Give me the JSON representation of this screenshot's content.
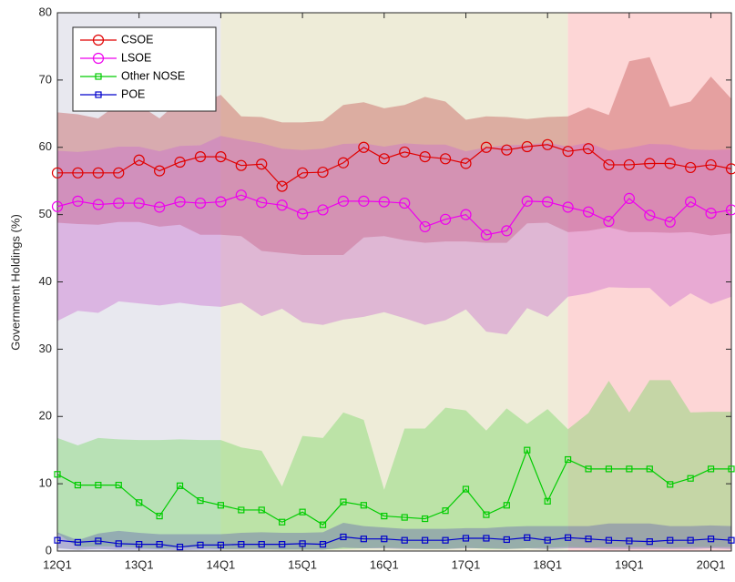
{
  "chart_data": {
    "type": "line",
    "y_label": "Government Holdings (%)",
    "categories": [
      "12Q1",
      null,
      null,
      null,
      "13Q1",
      null,
      null,
      null,
      "14Q1",
      null,
      null,
      null,
      "15Q1",
      null,
      null,
      null,
      "16Q1",
      null,
      null,
      null,
      "17Q1",
      null,
      null,
      null,
      "18Q1",
      null,
      null,
      null,
      "19Q1",
      null,
      null,
      null,
      "20Q1",
      null
    ],
    "ylim": [
      0,
      80
    ],
    "yticks": [
      0,
      10,
      20,
      30,
      40,
      50,
      60,
      70,
      80
    ],
    "regions": [
      {
        "start": 0,
        "end": 8,
        "color": "#e8e8ef"
      },
      {
        "start": 8,
        "end": 25,
        "color": "#eeecd8"
      },
      {
        "start": 25,
        "end": 33,
        "color": "#fdd6d6"
      }
    ],
    "legend": "upper-left",
    "series": [
      {
        "name": "CSOE",
        "color": "#e00000",
        "band_color": "#c05050",
        "marker": "circle",
        "values": [
          56.2,
          56.2,
          56.2,
          56.2,
          58.1,
          56.5,
          57.8,
          58.6,
          58.6,
          57.3,
          57.5,
          54.2,
          56.2,
          56.3,
          57.7,
          60.0,
          58.3,
          59.3,
          58.6,
          58.3,
          57.6,
          60.0,
          59.6,
          60.1,
          60.4,
          59.4,
          59.8,
          57.4,
          57.4,
          57.6,
          57.6,
          57.0,
          57.4,
          56.8
        ],
        "band_upper": [
          65.2,
          64.9,
          64.3,
          66.5,
          66.3,
          64.3,
          67.0,
          66.5,
          67.8,
          64.6,
          64.5,
          63.7,
          63.7,
          63.9,
          66.3,
          66.7,
          65.8,
          66.3,
          67.5,
          66.8,
          64.1,
          64.6,
          64.5,
          64.2,
          64.5,
          64.6,
          65.9,
          64.8,
          72.8,
          73.4,
          66.0,
          66.8,
          70.5,
          67.2
        ],
        "band_lower": [
          48.8,
          48.6,
          48.5,
          48.9,
          48.9,
          48.2,
          48.5,
          47.0,
          47.0,
          46.8,
          44.6,
          44.3,
          44.0,
          44.0,
          44.0,
          46.6,
          46.8,
          46.2,
          45.8,
          46.0,
          46.0,
          45.8,
          45.8,
          48.7,
          48.8,
          47.4,
          47.6,
          48.1,
          47.4,
          47.4,
          47.3,
          47.4,
          46.9,
          47.2
        ]
      },
      {
        "name": "LSOE",
        "color": "#ee00ee",
        "band_color": "#c86ad0",
        "marker": "circle",
        "values": [
          51.2,
          52.0,
          51.5,
          51.7,
          51.7,
          51.1,
          51.9,
          51.7,
          51.9,
          52.9,
          51.8,
          51.4,
          50.1,
          50.7,
          52.0,
          52.0,
          51.9,
          51.7,
          48.2,
          49.3,
          50.0,
          47.0,
          47.6,
          52.0,
          51.9,
          51.1,
          50.4,
          49.0,
          52.4,
          49.9,
          48.9,
          51.9,
          50.2,
          50.7
        ],
        "band_upper": [
          59.5,
          59.3,
          59.6,
          60.1,
          60.1,
          59.4,
          60.2,
          60.3,
          61.7,
          61.1,
          60.6,
          59.8,
          59.6,
          59.8,
          60.5,
          60.6,
          60.1,
          60.6,
          60.4,
          60.4,
          59.4,
          60.0,
          60.3,
          60.4,
          60.7,
          60.1,
          60.7,
          59.5,
          59.9,
          60.5,
          60.4,
          59.7,
          59.6,
          59.7
        ],
        "band_lower": [
          34.2,
          35.7,
          35.4,
          37.1,
          36.8,
          36.5,
          36.9,
          36.5,
          36.3,
          36.9,
          34.9,
          36.0,
          34.0,
          33.6,
          34.4,
          34.8,
          35.5,
          34.6,
          33.6,
          34.3,
          35.9,
          32.6,
          32.2,
          36.1,
          34.8,
          37.8,
          38.3,
          39.2,
          39.1,
          39.1,
          36.3,
          38.3,
          36.7,
          37.8
        ]
      },
      {
        "name": "Other NOSE",
        "color": "#00cc00",
        "band_color": "#70d860",
        "marker": "square",
        "values": [
          11.4,
          9.8,
          9.8,
          9.8,
          7.2,
          5.2,
          9.7,
          7.5,
          6.8,
          6.1,
          6.1,
          4.3,
          5.8,
          3.9,
          7.3,
          6.8,
          5.2,
          5.0,
          4.8,
          6.0,
          9.2,
          5.4,
          6.8,
          15.0,
          7.4,
          13.6,
          12.2,
          12.2,
          12.2,
          12.2,
          9.9,
          10.8,
          12.2,
          12.2
        ],
        "band_upper": [
          16.8,
          15.7,
          16.8,
          16.6,
          16.5,
          16.5,
          16.6,
          16.5,
          16.5,
          15.4,
          14.9,
          9.6,
          17.1,
          16.8,
          20.6,
          19.5,
          9.1,
          18.2,
          18.2,
          21.3,
          20.9,
          17.9,
          21.2,
          18.9,
          21.1,
          18.1,
          20.5,
          25.3,
          20.6,
          25.4,
          25.4,
          20.6,
          20.7,
          20.7
        ],
        "band_lower": [
          2.6,
          0.6,
          0.7,
          0.7,
          0.5,
          0.3,
          0.5,
          0.5,
          0.3,
          0.3,
          0.3,
          0.2,
          0.2,
          0.2,
          0.3,
          0.4,
          0.5,
          0.4,
          0.3,
          0.3,
          0.5,
          0.3,
          0.3,
          0.4,
          0.5,
          0.6,
          0.5,
          0.6,
          0.6,
          0.6,
          0.5,
          0.6,
          0.6,
          0.6
        ]
      },
      {
        "name": "POE",
        "color": "#0000cc",
        "band_color": "#6060b0",
        "marker": "square",
        "values": [
          1.6,
          1.3,
          1.5,
          1.1,
          1.0,
          1.0,
          0.6,
          0.9,
          0.9,
          1.0,
          1.0,
          1.0,
          1.1,
          1.0,
          2.1,
          1.8,
          1.8,
          1.6,
          1.6,
          1.6,
          1.9,
          1.9,
          1.7,
          2.0,
          1.6,
          2.0,
          1.8,
          1.6,
          1.5,
          1.4,
          1.6,
          1.6,
          1.8,
          1.6
        ],
        "band_upper": [
          2.8,
          1.6,
          2.6,
          3.0,
          2.7,
          2.5,
          2.5,
          2.5,
          2.5,
          2.7,
          2.8,
          2.7,
          2.7,
          2.8,
          4.2,
          3.7,
          3.5,
          3.3,
          3.3,
          3.3,
          3.4,
          3.4,
          3.6,
          3.7,
          3.7,
          3.7,
          3.7,
          4.1,
          4.1,
          4.1,
          3.7,
          3.7,
          3.8,
          3.7
        ],
        "band_lower": [
          0.4,
          0.2,
          0.3,
          0.2,
          0.2,
          0.2,
          0.1,
          0.2,
          0.2,
          0.2,
          0.2,
          0.2,
          0.2,
          0.2,
          0.5,
          0.4,
          0.4,
          0.3,
          0.3,
          0.3,
          0.4,
          0.4,
          0.3,
          0.4,
          0.3,
          0.4,
          0.4,
          0.3,
          0.3,
          0.3,
          0.3,
          0.3,
          0.4,
          0.3
        ]
      }
    ]
  }
}
